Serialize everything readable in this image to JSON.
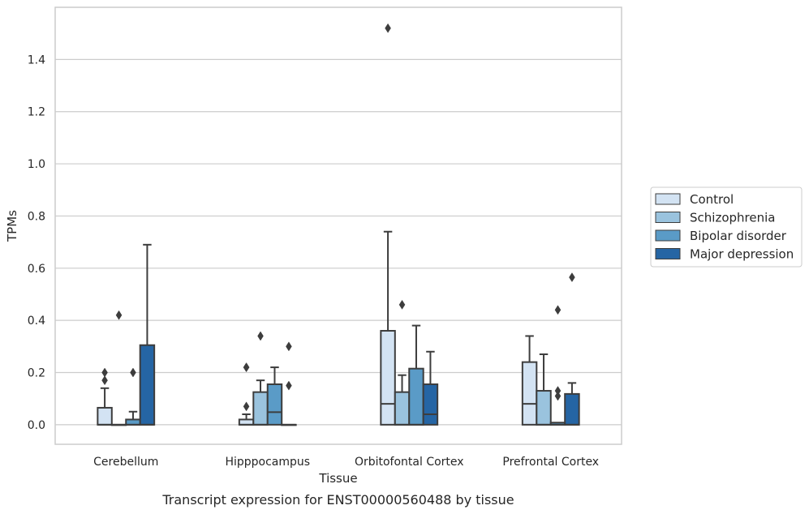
{
  "caption": "Transcript expression for ENST00000560488 by tissue",
  "chart_data": {
    "type": "box",
    "title": "",
    "xlabel": "Tissue",
    "ylabel": "TPMs",
    "ylim": [
      -0.075,
      1.6
    ],
    "yticks": [
      0.0,
      0.2,
      0.4,
      0.6,
      0.8,
      1.0,
      1.2,
      1.4
    ],
    "ytick_labels": [
      "0.0",
      "0.2",
      "0.4",
      "0.6",
      "0.8",
      "1.0",
      "1.2",
      "1.4"
    ],
    "grid": "horizontal",
    "legend_position": "right",
    "categories": [
      "Cerebellum",
      "Hipppocampus",
      "Orbitofontal Cortex",
      "Prefrontal Cortex"
    ],
    "series": [
      {
        "name": "Control",
        "color": "#d3e3f3",
        "boxes": [
          {
            "whislo": 0.0,
            "q1": 0.0,
            "med": 0.0,
            "q3": 0.065,
            "whishi": 0.14,
            "fliers": [
              0.17,
              0.2
            ]
          },
          {
            "whislo": 0.0,
            "q1": 0.0,
            "med": 0.0,
            "q3": 0.02,
            "whishi": 0.04,
            "fliers": [
              0.07,
              0.22,
              0.22
            ]
          },
          {
            "whislo": 0.0,
            "q1": 0.0,
            "med": 0.08,
            "q3": 0.36,
            "whishi": 0.74,
            "fliers": [
              1.52
            ]
          },
          {
            "whislo": 0.0,
            "q1": 0.0,
            "med": 0.08,
            "q3": 0.24,
            "whishi": 0.34,
            "fliers": []
          }
        ]
      },
      {
        "name": "Schizophrenia",
        "color": "#9ac3de",
        "boxes": [
          {
            "whislo": 0.0,
            "q1": 0.0,
            "med": 0.0,
            "q3": 0.0,
            "whishi": 0.0,
            "fliers": [
              0.42
            ]
          },
          {
            "whislo": 0.0,
            "q1": 0.0,
            "med": 0.0,
            "q3": 0.125,
            "whishi": 0.17,
            "fliers": [
              0.34
            ]
          },
          {
            "whislo": 0.0,
            "q1": 0.0,
            "med": 0.0,
            "q3": 0.125,
            "whishi": 0.19,
            "fliers": [
              0.46
            ]
          },
          {
            "whislo": 0.0,
            "q1": 0.0,
            "med": 0.0,
            "q3": 0.13,
            "whishi": 0.27,
            "fliers": []
          }
        ]
      },
      {
        "name": "Bipolar disorder",
        "color": "#5a9bc7",
        "boxes": [
          {
            "whislo": 0.0,
            "q1": 0.0,
            "med": 0.0,
            "q3": 0.02,
            "whishi": 0.05,
            "fliers": [
              0.2
            ]
          },
          {
            "whislo": 0.0,
            "q1": 0.0,
            "med": 0.048,
            "q3": 0.155,
            "whishi": 0.22,
            "fliers": []
          },
          {
            "whislo": 0.0,
            "q1": 0.0,
            "med": 0.0,
            "q3": 0.215,
            "whishi": 0.38,
            "fliers": []
          },
          {
            "whislo": 0.0,
            "q1": 0.0,
            "med": 0.0,
            "q3": 0.008,
            "whishi": 0.008,
            "fliers": [
              0.11,
              0.13,
              0.44
            ]
          }
        ]
      },
      {
        "name": "Major depression",
        "color": "#2565a4",
        "boxes": [
          {
            "whislo": 0.0,
            "q1": 0.0,
            "med": 0.0,
            "q3": 0.305,
            "whishi": 0.69,
            "fliers": []
          },
          {
            "whislo": 0.0,
            "q1": 0.0,
            "med": 0.0,
            "q3": 0.0,
            "whishi": 0.0,
            "fliers": [
              0.15,
              0.3
            ]
          },
          {
            "whislo": 0.0,
            "q1": 0.0,
            "med": 0.04,
            "q3": 0.155,
            "whishi": 0.28,
            "fliers": []
          },
          {
            "whislo": 0.0,
            "q1": 0.0,
            "med": 0.0,
            "q3": 0.118,
            "whishi": 0.16,
            "fliers": [
              0.565
            ]
          }
        ]
      }
    ]
  }
}
